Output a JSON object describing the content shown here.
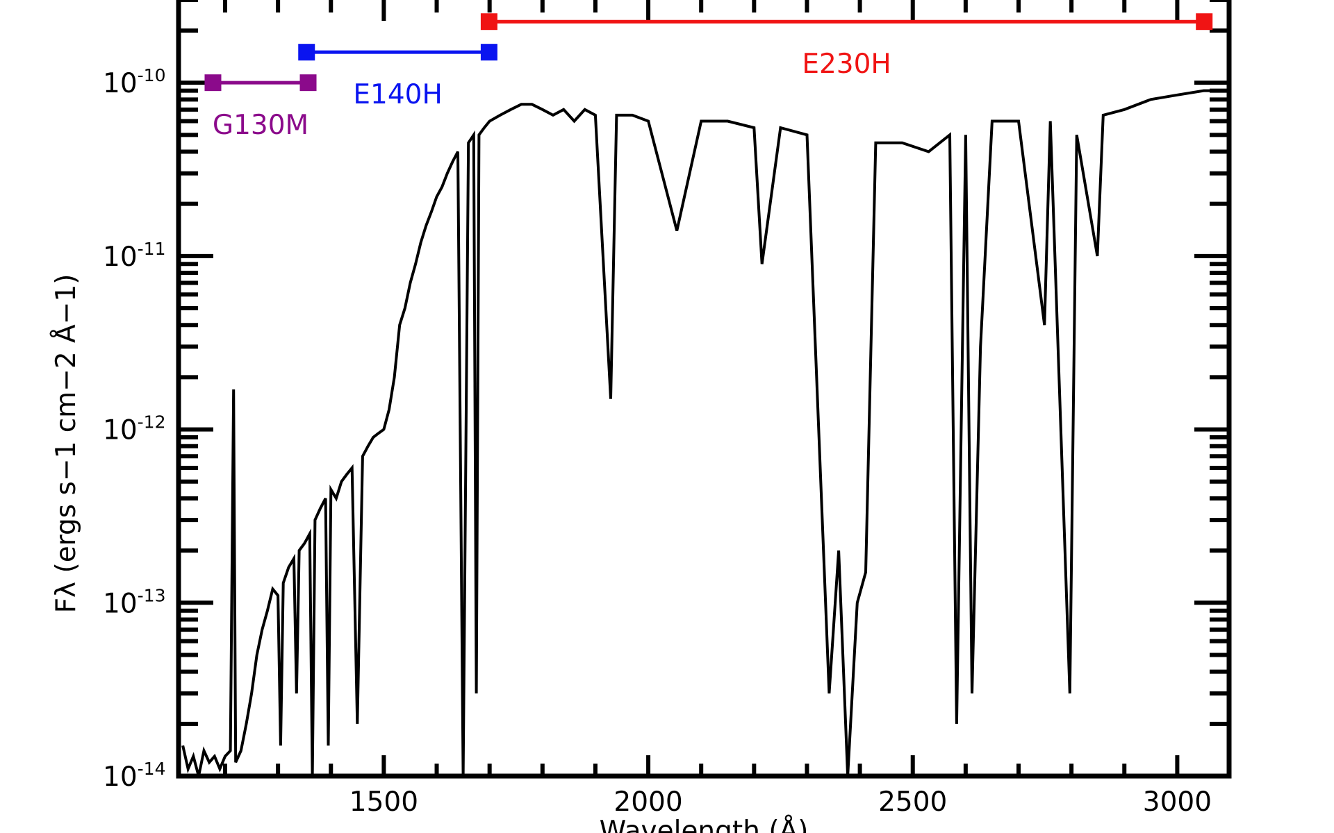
{
  "chart_data": {
    "type": "line",
    "x_label": "Wavelength (Å)",
    "y_label": "Fλ (ergs s−1 cm−2 Å−1)",
    "log_y": true,
    "xlim": [
      1112,
      3098
    ],
    "ylim": [
      1e-14,
      3e-10
    ],
    "xticks": [
      1500,
      2000,
      2500,
      3000
    ],
    "xminorticks": [
      1200,
      1300,
      1400,
      1600,
      1700,
      1800,
      1900,
      2100,
      2200,
      2300,
      2400,
      2600,
      2700,
      2800,
      2900
    ],
    "yticks": [
      {
        "value": 1e-14,
        "label": "10-14"
      },
      {
        "value": 1e-13,
        "label": "10-13"
      },
      {
        "value": 1e-12,
        "label": "10-12"
      },
      {
        "value": 1e-11,
        "label": "10-11"
      },
      {
        "value": 1e-10,
        "label": "10-10"
      }
    ],
    "yminorticks": [
      2e-14,
      3e-14,
      4e-14,
      5e-14,
      6e-14,
      7e-14,
      8e-14,
      9e-14,
      2e-13,
      3e-13,
      4e-13,
      5e-13,
      6e-13,
      7e-13,
      8e-13,
      9e-13,
      2e-12,
      3e-12,
      4e-12,
      5e-12,
      6e-12,
      7e-12,
      8e-12,
      9e-12,
      2e-11,
      3e-11,
      4e-11,
      5e-11,
      6e-11,
      7e-11,
      8e-11,
      9e-11,
      2e-10,
      3e-10
    ],
    "series": [
      {
        "color": "#000000",
        "x": [
          1120,
          1130,
          1140,
          1150,
          1160,
          1170,
          1180,
          1190,
          1200,
          1210,
          1216,
          1220,
          1230,
          1240,
          1250,
          1260,
          1270,
          1280,
          1290,
          1300,
          1305,
          1310,
          1320,
          1330,
          1335,
          1340,
          1350,
          1360,
          1365,
          1370,
          1380,
          1390,
          1395,
          1400,
          1410,
          1420,
          1430,
          1440,
          1450,
          1460,
          1470,
          1480,
          1490,
          1500,
          1510,
          1520,
          1530,
          1540,
          1550,
          1560,
          1570,
          1580,
          1590,
          1600,
          1610,
          1620,
          1630,
          1640,
          1650,
          1660,
          1670,
          1675,
          1680,
          1690,
          1700,
          1720,
          1740,
          1760,
          1780,
          1800,
          1820,
          1840,
          1860,
          1880,
          1900,
          1929,
          1940,
          1970,
          2000,
          2054,
          2100,
          2150,
          2200,
          2215,
          2250,
          2300,
          2342,
          2360,
          2377,
          2395,
          2411,
          2430,
          2480,
          2530,
          2570,
          2583,
          2600,
          2612,
          2628,
          2650,
          2700,
          2749,
          2760,
          2797,
          2810,
          2849,
          2860,
          2900,
          2950,
          3000,
          3050,
          3095
        ],
        "values": [
          1.5e-14,
          1.1e-14,
          1.3e-14,
          1e-14,
          1.4e-14,
          1.2e-14,
          1.3e-14,
          1.1e-14,
          1.3e-14,
          1.4e-14,
          1.7e-12,
          1.2e-14,
          1.4e-14,
          2e-14,
          3e-14,
          5e-14,
          7e-14,
          9e-14,
          1.2e-13,
          1.1e-13,
          1.5e-14,
          1.3e-13,
          1.6e-13,
          1.8e-13,
          3e-14,
          2e-13,
          2.2e-13,
          2.5e-13,
          1e-14,
          3e-13,
          3.5e-13,
          4e-13,
          1.5e-14,
          4.5e-13,
          4e-13,
          5e-13,
          5.5e-13,
          6e-13,
          2e-14,
          7e-13,
          8e-13,
          9e-13,
          9.5e-13,
          1e-12,
          1.3e-12,
          2e-12,
          4e-12,
          5e-12,
          7e-12,
          9e-12,
          1.2e-11,
          1.5e-11,
          1.8e-11,
          2.2e-11,
          2.5e-11,
          3e-11,
          3.5e-11,
          4e-11,
          1e-14,
          4.5e-11,
          5e-11,
          3e-14,
          5e-11,
          5.5e-11,
          6e-11,
          6.5e-11,
          7e-11,
          7.5e-11,
          7.5e-11,
          7e-11,
          6.5e-11,
          7e-11,
          6e-11,
          7e-11,
          6.5e-11,
          1.5e-12,
          6.5e-11,
          6.5e-11,
          6e-11,
          1.4e-11,
          6e-11,
          6e-11,
          5.5e-11,
          9e-12,
          5.5e-11,
          5e-11,
          3e-14,
          2e-13,
          1e-14,
          1e-13,
          1.5e-13,
          4.5e-11,
          4.5e-11,
          4e-11,
          5e-11,
          2e-14,
          5e-11,
          3e-14,
          3e-12,
          6e-11,
          6e-11,
          4e-12,
          6e-11,
          3e-14,
          5e-11,
          1e-11,
          6.5e-11,
          7e-11,
          8e-11,
          8.5e-11,
          9e-11,
          9e-11
        ]
      }
    ],
    "ranges": [
      {
        "name": "G130M",
        "color": "#8b0a8b",
        "x": [
          1177,
          1357
        ],
        "y": 1e-10
      },
      {
        "name": "E140H",
        "color": "#0a14f0",
        "x": [
          1354,
          1699
        ],
        "y": 1.5e-10
      },
      {
        "name": "E230H",
        "color": "#f01414",
        "x": [
          1699,
          3051
        ],
        "y": 2.25e-10
      }
    ]
  }
}
